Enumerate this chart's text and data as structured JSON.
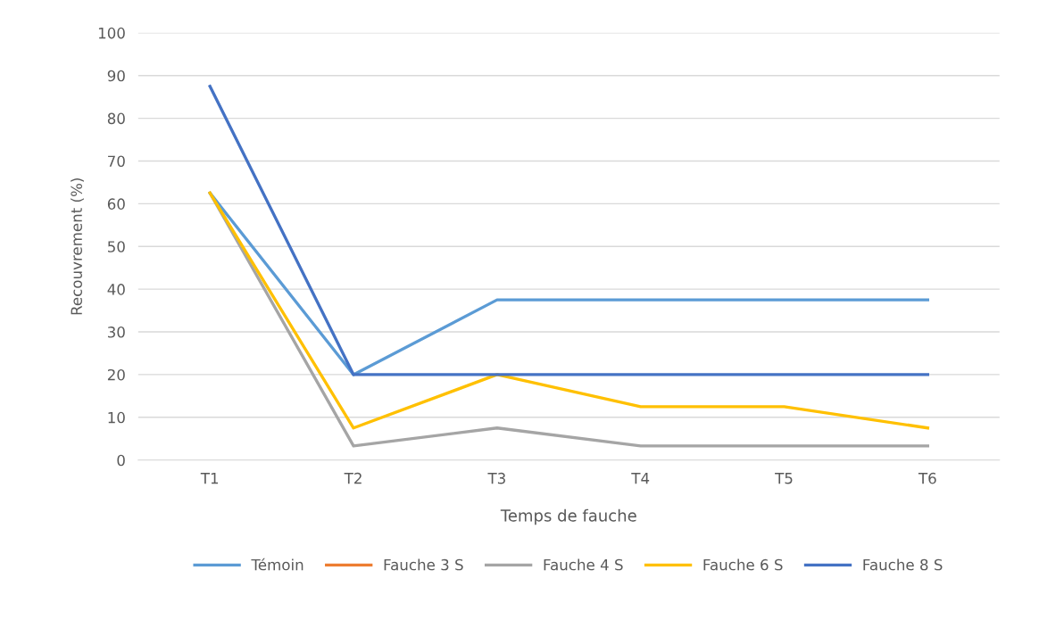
{
  "chart_data": {
    "type": "line",
    "xlabel": "Temps de fauche",
    "ylabel": "Recouvrement (%)",
    "categories": [
      "T1",
      "T2",
      "T3",
      "T4",
      "T5",
      "T6"
    ],
    "series": [
      {
        "name": "Témoin",
        "color": "#5b9bd5",
        "values": [
          62.5,
          20,
          37.5,
          37.5,
          37.5,
          37.5
        ]
      },
      {
        "name": "Fauche 3 S",
        "color": "#ed7d31",
        "values": [
          null,
          null,
          null,
          null,
          null,
          null
        ]
      },
      {
        "name": "Fauche 4 S",
        "color": "#a5a5a5",
        "values": [
          62.5,
          3.3,
          7.5,
          3.3,
          3.3,
          3.3
        ]
      },
      {
        "name": "Fauche 6 S",
        "color": "#ffc000",
        "values": [
          62.5,
          7.5,
          20,
          12.5,
          12.5,
          7.5
        ]
      },
      {
        "name": "Fauche 8 S",
        "color": "#4472c4",
        "values": [
          87.5,
          20,
          20,
          20,
          20,
          20
        ]
      }
    ],
    "ylim": [
      0,
      100
    ],
    "yticks": [
      0,
      10,
      20,
      30,
      40,
      50,
      60,
      70,
      80,
      90,
      100
    ],
    "grid": "y",
    "legend": "bottom",
    "marker": "none",
    "line_style": "solid"
  }
}
